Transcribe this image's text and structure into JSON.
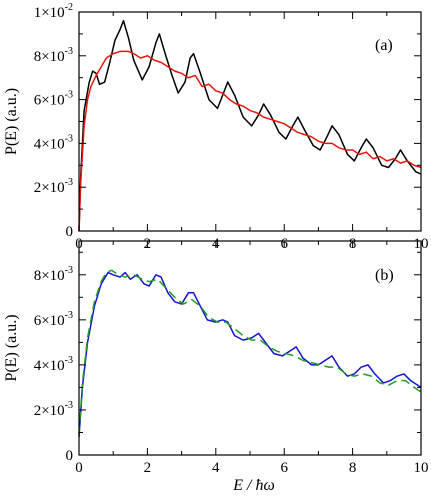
{
  "chart_data": [
    {
      "type": "line",
      "panel_label": "(a)",
      "ylabel": "P(E) (a.u.)",
      "xlabel": "",
      "xlim": [
        0,
        10
      ],
      "ylim": [
        0,
        0.01
      ],
      "x_ticks": [
        0,
        2,
        4,
        6,
        8,
        10
      ],
      "y_ticks": [
        {
          "value": 0,
          "mantissa": "0",
          "exp": ""
        },
        {
          "value": 0.002,
          "mantissa": "2×10",
          "exp": "-3"
        },
        {
          "value": 0.004,
          "mantissa": "4×10",
          "exp": "-3"
        },
        {
          "value": 0.006,
          "mantissa": "6×10",
          "exp": "-3"
        },
        {
          "value": 0.008,
          "mantissa": "8×10",
          "exp": "-3"
        },
        {
          "value": 0.01,
          "mantissa": "1×10",
          "exp": "-2"
        }
      ],
      "series": [
        {
          "color": "#000000",
          "style": "solid",
          "points": [
            [
              0,
              0
            ],
            [
              0.05,
              0.0025
            ],
            [
              0.15,
              0.0055
            ],
            [
              0.3,
              0.0068
            ],
            [
              0.4,
              0.0073
            ],
            [
              0.5,
              0.0072
            ],
            [
              0.6,
              0.0067
            ],
            [
              0.75,
              0.0068
            ],
            [
              0.9,
              0.0077
            ],
            [
              1.05,
              0.0087
            ],
            [
              1.2,
              0.0092
            ],
            [
              1.3,
              0.0096
            ],
            [
              1.45,
              0.0088
            ],
            [
              1.6,
              0.0078
            ],
            [
              1.85,
              0.0069
            ],
            [
              2.05,
              0.0075
            ],
            [
              2.25,
              0.0086
            ],
            [
              2.35,
              0.009
            ],
            [
              2.5,
              0.0082
            ],
            [
              2.7,
              0.0072
            ],
            [
              2.9,
              0.0063
            ],
            [
              3.1,
              0.0068
            ],
            [
              3.25,
              0.0079
            ],
            [
              3.35,
              0.0081
            ],
            [
              3.55,
              0.0072
            ],
            [
              3.8,
              0.006
            ],
            [
              4.05,
              0.0056
            ],
            [
              4.25,
              0.0064
            ],
            [
              4.35,
              0.0068
            ],
            [
              4.55,
              0.0062
            ],
            [
              4.8,
              0.0052
            ],
            [
              5.05,
              0.0048
            ],
            [
              5.25,
              0.0053
            ],
            [
              5.4,
              0.0058
            ],
            [
              5.6,
              0.0053
            ],
            [
              5.85,
              0.0045
            ],
            [
              6.05,
              0.0042
            ],
            [
              6.25,
              0.0048
            ],
            [
              6.4,
              0.0052
            ],
            [
              6.6,
              0.0046
            ],
            [
              6.85,
              0.0039
            ],
            [
              7.05,
              0.0037
            ],
            [
              7.25,
              0.0043
            ],
            [
              7.4,
              0.0048
            ],
            [
              7.6,
              0.0044
            ],
            [
              7.85,
              0.0035
            ],
            [
              8.05,
              0.0032
            ],
            [
              8.25,
              0.0038
            ],
            [
              8.4,
              0.0042
            ],
            [
              8.6,
              0.0038
            ],
            [
              8.85,
              0.003
            ],
            [
              9.05,
              0.0029
            ],
            [
              9.25,
              0.0033
            ],
            [
              9.4,
              0.0037
            ],
            [
              9.6,
              0.0032
            ],
            [
              9.85,
              0.0027
            ],
            [
              10.0,
              0.0026
            ]
          ]
        },
        {
          "color": "#e8150c",
          "style": "solid",
          "points": [
            [
              0,
              0
            ],
            [
              0.05,
              0.0022
            ],
            [
              0.15,
              0.0048
            ],
            [
              0.25,
              0.006
            ],
            [
              0.35,
              0.0066
            ],
            [
              0.5,
              0.0071
            ],
            [
              0.65,
              0.0075
            ],
            [
              0.8,
              0.0079
            ],
            [
              1.0,
              0.0081
            ],
            [
              1.2,
              0.0082
            ],
            [
              1.45,
              0.0082
            ],
            [
              1.6,
              0.0081
            ],
            [
              1.8,
              0.0079
            ],
            [
              2.0,
              0.008
            ],
            [
              2.2,
              0.0078
            ],
            [
              2.4,
              0.0077
            ],
            [
              2.6,
              0.0075
            ],
            [
              2.8,
              0.0073
            ],
            [
              3.0,
              0.0072
            ],
            [
              3.2,
              0.007
            ],
            [
              3.4,
              0.0071
            ],
            [
              3.6,
              0.0066
            ],
            [
              3.8,
              0.0067
            ],
            [
              4.0,
              0.0064
            ],
            [
              4.2,
              0.0063
            ],
            [
              4.4,
              0.006
            ],
            [
              4.6,
              0.0058
            ],
            [
              4.8,
              0.0057
            ],
            [
              5.0,
              0.0055
            ],
            [
              5.2,
              0.0054
            ],
            [
              5.4,
              0.0052
            ],
            [
              5.6,
              0.0051
            ],
            [
              5.8,
              0.005
            ],
            [
              6.0,
              0.0049
            ],
            [
              6.2,
              0.0047
            ],
            [
              6.4,
              0.0045
            ],
            [
              6.6,
              0.0044
            ],
            [
              6.8,
              0.0043
            ],
            [
              7.0,
              0.0041
            ],
            [
              7.2,
              0.004
            ],
            [
              7.4,
              0.004
            ],
            [
              7.6,
              0.0038
            ],
            [
              7.8,
              0.0037
            ],
            [
              8.0,
              0.0037
            ],
            [
              8.2,
              0.0035
            ],
            [
              8.4,
              0.0036
            ],
            [
              8.6,
              0.0033
            ],
            [
              8.8,
              0.0034
            ],
            [
              9.0,
              0.0032
            ],
            [
              9.2,
              0.0033
            ],
            [
              9.4,
              0.0031
            ],
            [
              9.6,
              0.0032
            ],
            [
              9.8,
              0.003
            ],
            [
              10.0,
              0.0029
            ]
          ]
        }
      ]
    },
    {
      "type": "line",
      "panel_label": "(b)",
      "ylabel": "P(E) (a.u.)",
      "xlabel": "E / ħω",
      "xlim": [
        0,
        10
      ],
      "ylim": [
        0,
        0.0095
      ],
      "x_ticks": [
        0,
        2,
        4,
        6,
        8,
        10
      ],
      "y_ticks": [
        {
          "value": 0,
          "mantissa": "0",
          "exp": ""
        },
        {
          "value": 0.002,
          "mantissa": "2×10",
          "exp": "-3"
        },
        {
          "value": 0.004,
          "mantissa": "4×10",
          "exp": "-3"
        },
        {
          "value": 0.006,
          "mantissa": "6×10",
          "exp": "-3"
        },
        {
          "value": 0.008,
          "mantissa": "8×10",
          "exp": "-3"
        }
      ],
      "series": [
        {
          "color": "#1414d2",
          "style": "solid",
          "points": [
            [
              0,
              0.0008
            ],
            [
              0.1,
              0.003
            ],
            [
              0.25,
              0.005
            ],
            [
              0.45,
              0.0066
            ],
            [
              0.65,
              0.0076
            ],
            [
              0.85,
              0.0081
            ],
            [
              1.0,
              0.008
            ],
            [
              1.2,
              0.0079
            ],
            [
              1.35,
              0.0081
            ],
            [
              1.5,
              0.0078
            ],
            [
              1.7,
              0.008
            ],
            [
              1.9,
              0.0076
            ],
            [
              2.05,
              0.0075
            ],
            [
              2.25,
              0.008
            ],
            [
              2.4,
              0.0079
            ],
            [
              2.6,
              0.0072
            ],
            [
              2.8,
              0.0068
            ],
            [
              3.0,
              0.0067
            ],
            [
              3.2,
              0.0072
            ],
            [
              3.35,
              0.0072
            ],
            [
              3.55,
              0.0066
            ],
            [
              3.75,
              0.006
            ],
            [
              4.0,
              0.0059
            ],
            [
              4.2,
              0.006
            ],
            [
              4.35,
              0.0059
            ],
            [
              4.55,
              0.0053
            ],
            [
              4.8,
              0.0051
            ],
            [
              5.05,
              0.0052
            ],
            [
              5.25,
              0.0054
            ],
            [
              5.45,
              0.005
            ],
            [
              5.7,
              0.0045
            ],
            [
              5.95,
              0.0044
            ],
            [
              6.15,
              0.0046
            ],
            [
              6.35,
              0.0048
            ],
            [
              6.55,
              0.0043
            ],
            [
              6.8,
              0.004
            ],
            [
              7.0,
              0.004
            ],
            [
              7.2,
              0.0042
            ],
            [
              7.4,
              0.0044
            ],
            [
              7.6,
              0.0039
            ],
            [
              7.85,
              0.0035
            ],
            [
              8.05,
              0.0036
            ],
            [
              8.25,
              0.0039
            ],
            [
              8.45,
              0.004
            ],
            [
              8.65,
              0.0036
            ],
            [
              8.9,
              0.0032
            ],
            [
              9.1,
              0.0033
            ],
            [
              9.3,
              0.0035
            ],
            [
              9.5,
              0.0036
            ],
            [
              9.7,
              0.0033
            ],
            [
              10.0,
              0.003
            ]
          ]
        },
        {
          "color": "#1f9e1f",
          "style": "dashed",
          "points": [
            [
              0,
              0.0009
            ],
            [
              0.1,
              0.0032
            ],
            [
              0.25,
              0.0052
            ],
            [
              0.45,
              0.0068
            ],
            [
              0.65,
              0.0077
            ],
            [
              0.8,
              0.0081
            ],
            [
              0.95,
              0.0082
            ],
            [
              1.15,
              0.008
            ],
            [
              1.35,
              0.0079
            ],
            [
              1.6,
              0.008
            ],
            [
              1.85,
              0.0078
            ],
            [
              2.05,
              0.0077
            ],
            [
              2.3,
              0.0078
            ],
            [
              2.55,
              0.0074
            ],
            [
              2.8,
              0.007
            ],
            [
              3.05,
              0.0067
            ],
            [
              3.3,
              0.0069
            ],
            [
              3.55,
              0.0066
            ],
            [
              3.8,
              0.0061
            ],
            [
              4.05,
              0.0059
            ],
            [
              4.3,
              0.0059
            ],
            [
              4.55,
              0.0056
            ],
            [
              4.8,
              0.0053
            ],
            [
              5.05,
              0.0051
            ],
            [
              5.3,
              0.0051
            ],
            [
              5.55,
              0.0048
            ],
            [
              5.8,
              0.0046
            ],
            [
              6.05,
              0.0045
            ],
            [
              6.3,
              0.0044
            ],
            [
              6.55,
              0.0042
            ],
            [
              6.8,
              0.0041
            ],
            [
              7.05,
              0.004
            ],
            [
              7.3,
              0.0039
            ],
            [
              7.55,
              0.0039
            ],
            [
              7.8,
              0.0036
            ],
            [
              8.05,
              0.0035
            ],
            [
              8.3,
              0.0036
            ],
            [
              8.55,
              0.0035
            ],
            [
              8.8,
              0.0032
            ],
            [
              9.05,
              0.0031
            ],
            [
              9.3,
              0.0033
            ],
            [
              9.55,
              0.0033
            ],
            [
              9.8,
              0.003
            ],
            [
              10.0,
              0.0028
            ]
          ]
        }
      ]
    }
  ]
}
